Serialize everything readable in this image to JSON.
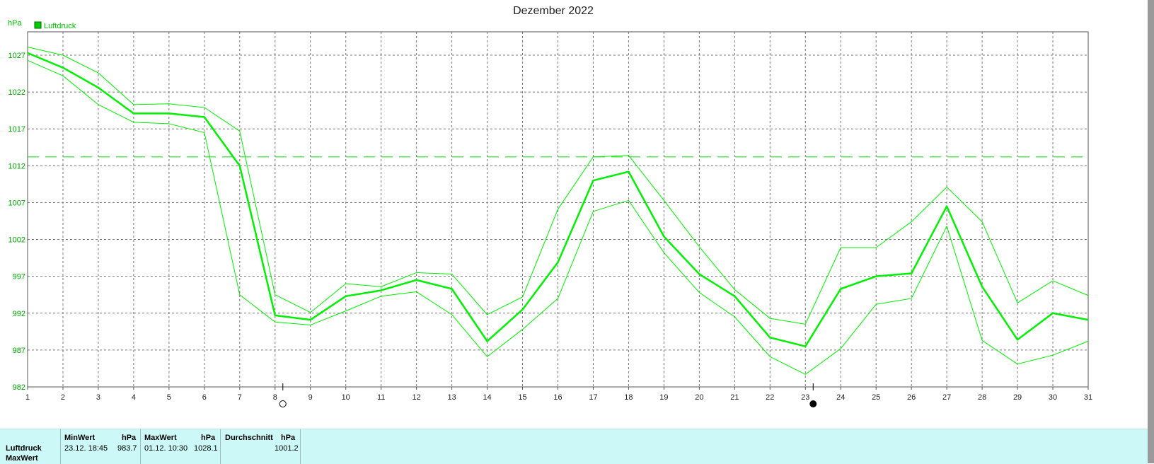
{
  "chart_data": {
    "type": "line",
    "title": "Dezember 2022",
    "ylabel": "hPa",
    "xlabel": "",
    "legend": {
      "label": "Luftdruck",
      "color": "#00cc00",
      "placement": "top-left"
    },
    "grid": true,
    "x": [
      1,
      2,
      3,
      4,
      5,
      6,
      7,
      8,
      9,
      10,
      11,
      12,
      13,
      14,
      15,
      16,
      17,
      18,
      19,
      20,
      21,
      22,
      23,
      24,
      25,
      26,
      27,
      28,
      29,
      30,
      31
    ],
    "xlim": [
      1,
      31
    ],
    "ylim": [
      982,
      1030
    ],
    "yticks": [
      982,
      987,
      992,
      997,
      1002,
      1007,
      1012,
      1017,
      1022,
      1027
    ],
    "reference_line": 1013.2,
    "series": [
      {
        "role": "max",
        "values": [
          1028.1,
          1027.0,
          1024.6,
          1020.3,
          1020.4,
          1019.9,
          1016.7,
          994.5,
          992.1,
          996.0,
          995.6,
          997.5,
          997.3,
          991.8,
          994.2,
          1006.1,
          1013.2,
          1013.4,
          1007.3,
          1001.0,
          995.2,
          991.3,
          990.5,
          1000.9,
          1000.9,
          1004.4,
          1009.1,
          1004.4,
          993.4,
          996.4,
          994.4
        ]
      },
      {
        "role": "mean",
        "values": [
          1027.3,
          1025.3,
          1022.6,
          1019.1,
          1019.1,
          1018.6,
          1012.0,
          991.7,
          991.1,
          994.3,
          995.1,
          996.5,
          995.3,
          988.2,
          992.5,
          998.9,
          1010.0,
          1011.2,
          1002.4,
          997.3,
          994.3,
          988.7,
          987.5,
          995.3,
          997.0,
          997.4,
          1006.5,
          995.6,
          988.4,
          992.0,
          991.1
        ]
      },
      {
        "role": "min",
        "values": [
          1026.3,
          1024.2,
          1020.3,
          1017.9,
          1017.7,
          1016.5,
          994.5,
          990.8,
          990.4,
          992.3,
          994.3,
          994.9,
          991.8,
          986.1,
          989.8,
          994.0,
          1005.8,
          1007.3,
          1000.2,
          994.8,
          991.5,
          986.1,
          983.7,
          987.2,
          993.2,
          994.0,
          1003.8,
          988.3,
          985.1,
          986.3,
          988.2
        ]
      }
    ],
    "markers": [
      {
        "x": 8,
        "symbol": "full-moon"
      },
      {
        "x": 23,
        "symbol": "new-moon"
      }
    ]
  },
  "stats": {
    "row_label": "Luftdruck",
    "row_label_2": "MaxWert",
    "min_head": "MinWert",
    "max_head": "MaxWert",
    "avg_head": "Durchschnitt",
    "unit": "hPa",
    "min_time": "23.12.  18:45",
    "min_value": "983.7",
    "max_time": "01.12.  10:30",
    "max_value": "1028.1",
    "avg_value": "1001.2"
  },
  "colors": {
    "line": "#00ee00",
    "panel": "#ccf8f8"
  }
}
